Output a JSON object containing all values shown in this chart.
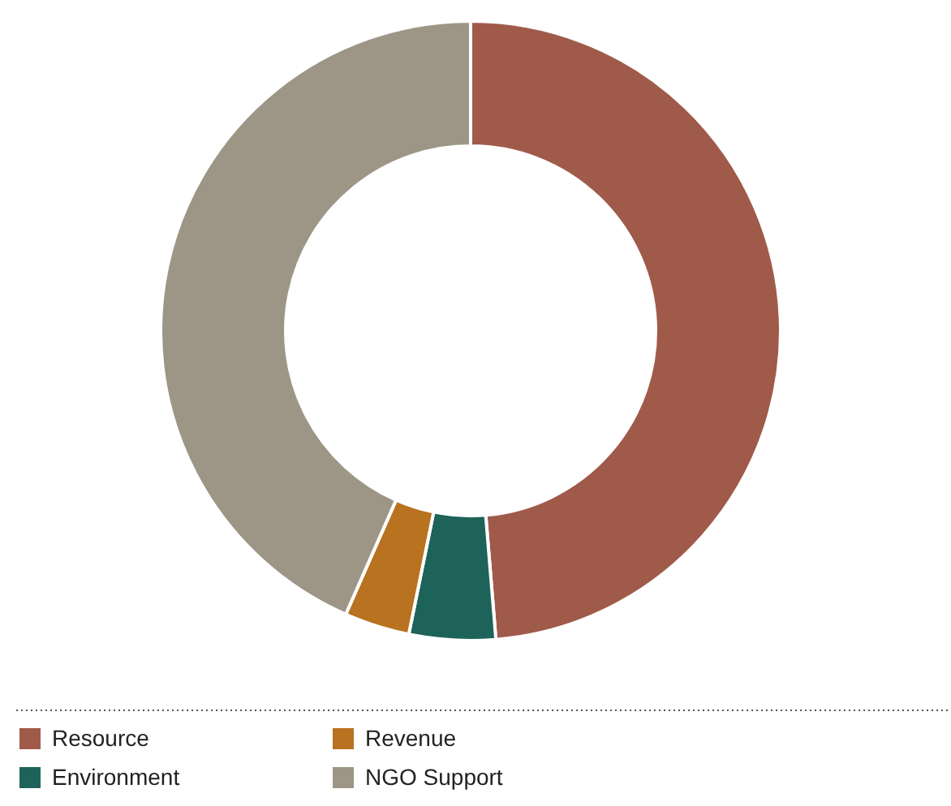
{
  "chart_data": {
    "type": "donut",
    "categories": [
      "Resource",
      "Environment",
      "Revenue",
      "NGO Support"
    ],
    "values": [
      48.7,
      4.5,
      3.4,
      43.4
    ],
    "colors": [
      "#a05a4a",
      "#1d6359",
      "#b9721f",
      "#9d9686"
    ],
    "legend": "bottom"
  }
}
